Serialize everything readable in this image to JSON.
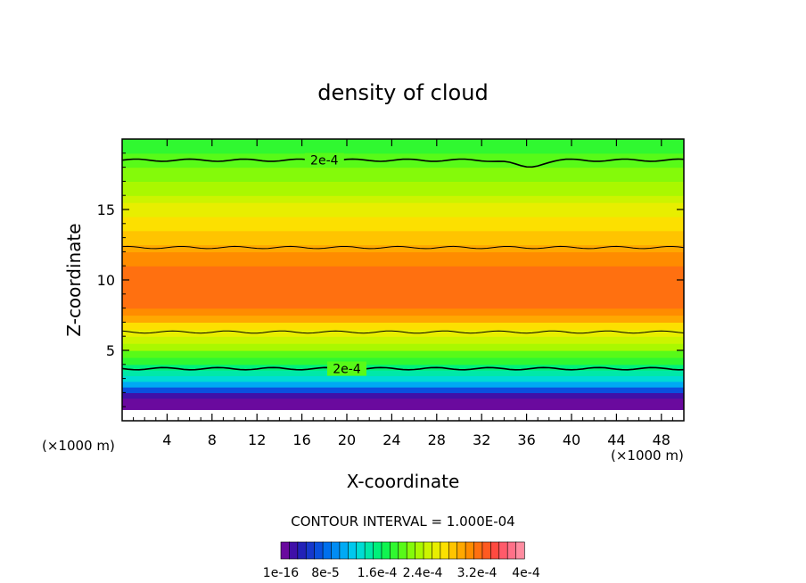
{
  "chart_data": {
    "type": "heatmap",
    "title": "density of cloud",
    "xlabel": "X-coordinate",
    "ylabel": "Z-coordinate",
    "x_unit_left": "(×1000 m)",
    "x_unit_right": "(×1000 m)",
    "xlim": [
      0,
      50
    ],
    "ylim": [
      0,
      20
    ],
    "x_ticks": [
      4,
      8,
      12,
      16,
      20,
      24,
      28,
      32,
      36,
      40,
      44,
      48
    ],
    "x_tick_labels": [
      "4",
      "8",
      "12",
      "16",
      "20",
      "24",
      "28",
      "32",
      "36",
      "40",
      "44",
      "48"
    ],
    "y_ticks": [
      5,
      10,
      15
    ],
    "y_tick_labels": [
      "5",
      "10",
      "15"
    ],
    "profile_z": [
      0.8,
      1.2,
      1.6,
      2.0,
      2.4,
      2.8,
      3.2,
      3.6,
      4.0,
      4.5,
      5.0,
      5.5,
      6.0,
      6.5,
      7.0,
      7.5,
      8.0,
      9.0,
      10.0,
      10.5,
      11.0,
      11.5,
      12.0,
      12.5,
      13.0,
      13.5,
      14.0,
      14.5,
      15.0,
      15.5,
      16.0,
      16.5,
      17.0,
      17.5,
      18.0,
      18.5,
      19.0,
      19.5,
      20.0
    ],
    "profile_value": [
      1e-16,
      8e-06,
      2.4e-05,
      6e-05,
      0.0001,
      0.000125,
      0.000145,
      0.000165,
      0.000185,
      0.000205,
      0.000225,
      0.000245,
      0.00026,
      0.000275,
      0.000295,
      0.00031,
      0.00032,
      0.00033,
      0.00033,
      0.000325,
      0.000315,
      0.000305,
      0.000295,
      0.000285,
      0.00028,
      0.000272,
      0.000265,
      0.000258,
      0.00025,
      0.000242,
      0.000234,
      0.000226,
      0.000218,
      0.00021,
      0.000202,
      0.000196,
      0.00019,
      0.000185,
      0.00018
    ],
    "contour_lines": [
      {
        "value": 0.0002,
        "label": "2e-4",
        "z": 18.5,
        "dip_x": 36,
        "dip_depth": 0.5
      },
      {
        "value": 0.0003,
        "label": "",
        "z": 12.3,
        "dip_x": null,
        "dip_depth": 0
      },
      {
        "value": 0.0003,
        "label": "",
        "z": 6.3,
        "dip_x": null,
        "dip_depth": 0
      },
      {
        "value": 0.0002,
        "label": "2e-4",
        "z": 3.7,
        "dip_x": null,
        "dip_depth": 0
      }
    ],
    "contour_interval_text": "CONTOUR INTERVAL = 1.000E-04",
    "colorbar": {
      "colors": [
        "#6a0a9e",
        "#4010a8",
        "#2222b8",
        "#1638cc",
        "#0a50de",
        "#0070ee",
        "#008cf4",
        "#00aaf4",
        "#00c8ee",
        "#00dcd4",
        "#00e8a8",
        "#00f07a",
        "#10f450",
        "#30f830",
        "#58fa18",
        "#84fa0a",
        "#aaf800",
        "#ccf400",
        "#e8ee00",
        "#fce000",
        "#ffc400",
        "#ffa800",
        "#ff8c00",
        "#ff7010",
        "#ff5a20",
        "#ff4a40",
        "#ff5a6a",
        "#ff7088",
        "#ff8ca0"
      ],
      "tick_labels": [
        "1e-16",
        "8e-5",
        "1.6e-4",
        "2.4e-4",
        "3.2e-4",
        "4e-4"
      ],
      "min": 1e-16,
      "max": 0.0004
    }
  }
}
